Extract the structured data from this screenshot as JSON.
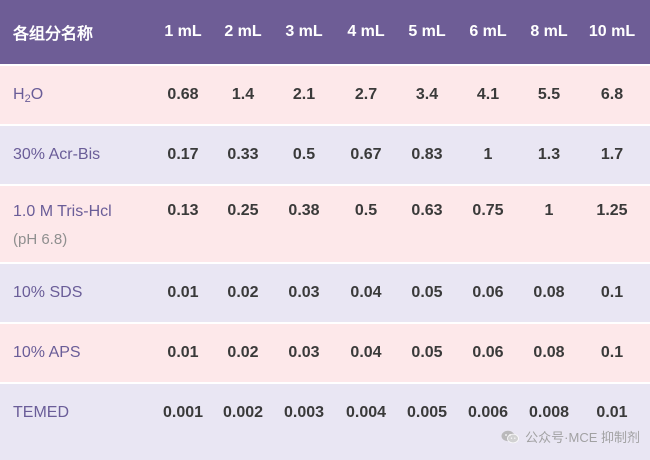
{
  "header": {
    "label": "各组分名称",
    "volumes": [
      "1 mL",
      "2 mL",
      "3 mL",
      "4 mL",
      "5 mL",
      "6 mL",
      "8 mL",
      "10 mL"
    ]
  },
  "rows": [
    {
      "label_main": "H",
      "label_sub": "2",
      "label_tail": "O",
      "values": [
        "0.68",
        "1.4",
        "2.1",
        "2.7",
        "3.4",
        "4.1",
        "5.5",
        "6.8"
      ]
    },
    {
      "label": "30% Acr-Bis",
      "values": [
        "0.17",
        "0.33",
        "0.5",
        "0.67",
        "0.83",
        "1",
        "1.3",
        "1.7"
      ]
    },
    {
      "label": "1.0 M Tris-Hcl",
      "note": "(pH 6.8)",
      "values": [
        "0.13",
        "0.25",
        "0.38",
        "0.5",
        "0.63",
        "0.75",
        "1",
        "1.25"
      ]
    },
    {
      "label": "10% SDS",
      "values": [
        "0.01",
        "0.02",
        "0.03",
        "0.04",
        "0.05",
        "0.06",
        "0.08",
        "0.1"
      ]
    },
    {
      "label": "10% APS",
      "values": [
        "0.01",
        "0.02",
        "0.03",
        "0.04",
        "0.05",
        "0.06",
        "0.08",
        "0.1"
      ]
    },
    {
      "label": "TEMED",
      "values": [
        "0.001",
        "0.002",
        "0.003",
        "0.004",
        "0.005",
        "0.006",
        "0.008",
        "0.01"
      ]
    }
  ],
  "watermark": {
    "text": "公众号·MCE 抑制剂",
    "icon": "wechat-icon"
  }
}
